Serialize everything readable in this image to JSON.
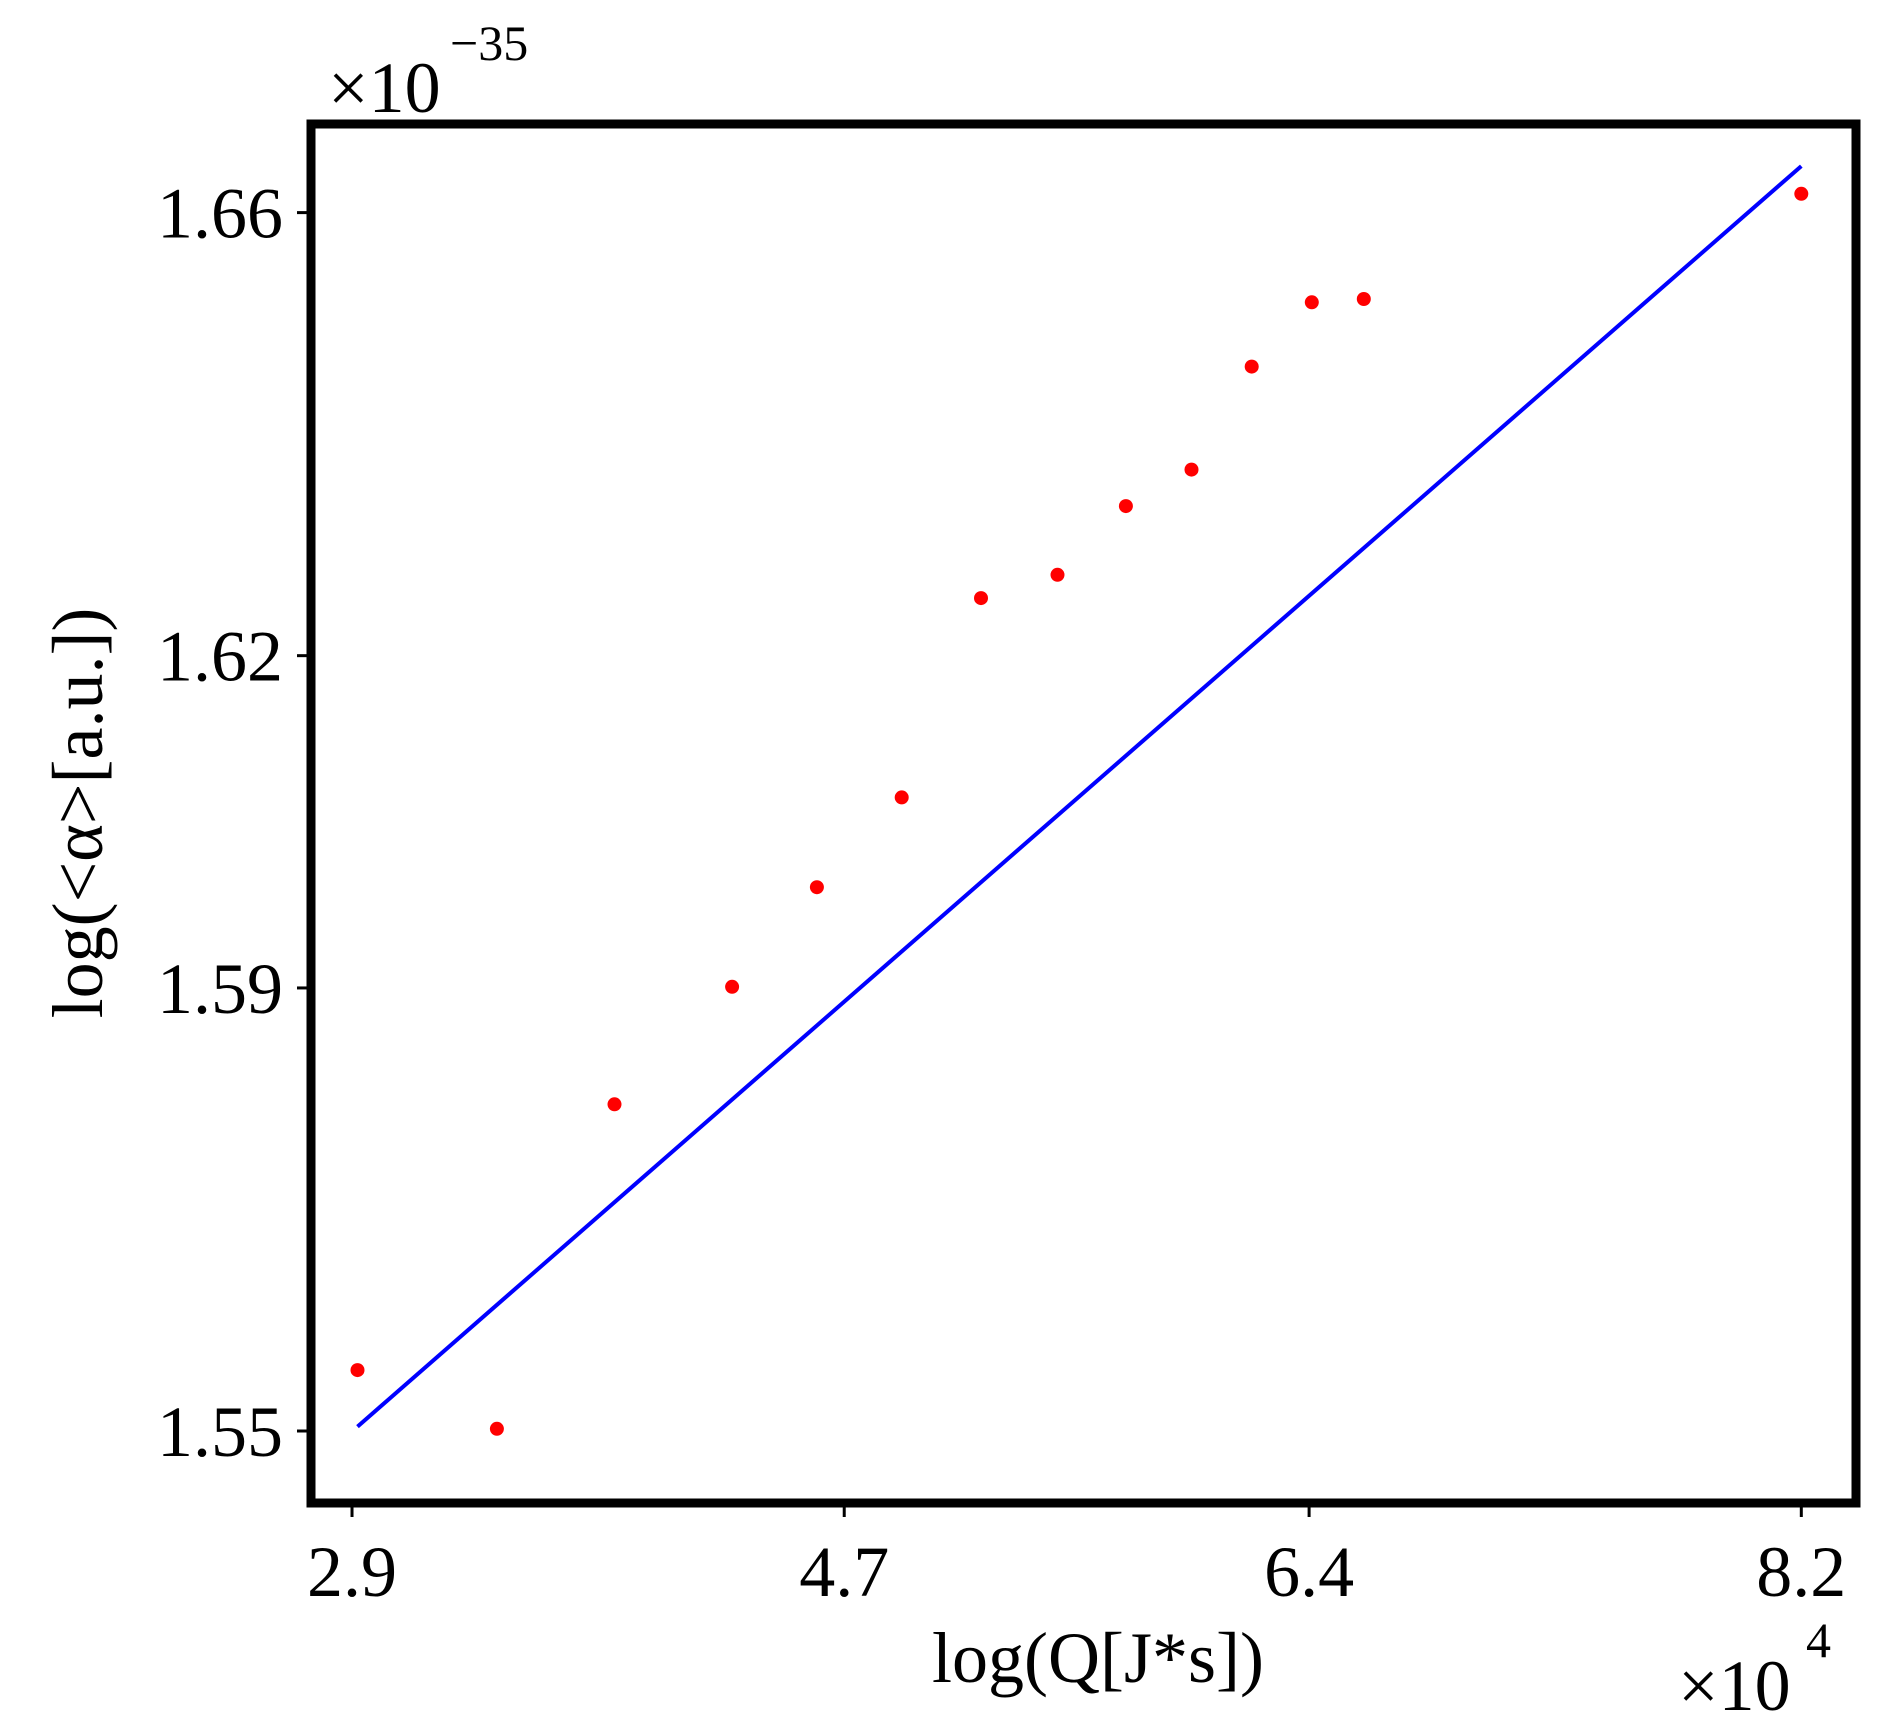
{
  "chart_data": {
    "type": "scatter",
    "title": "",
    "xlabel": "log(Q[J*s])",
    "ylabel": "log(<α>[a.u.])",
    "x_scale_exponent_label": "×10",
    "x_scale_exponent": "4",
    "y_scale_exponent_label": "×10",
    "y_scale_exponent": "−35",
    "xlim": [
      2.75,
      8.4
    ],
    "ylim": [
      1.5435,
      1.668
    ],
    "x_ticks": [
      2.9,
      4.7,
      6.4,
      8.2
    ],
    "x_tick_labels": [
      "2.9",
      "4.7",
      "6.4",
      "8.2"
    ],
    "y_ticks": [
      1.55,
      1.59,
      1.62,
      1.66
    ],
    "y_tick_labels": [
      "1.55",
      "1.59",
      "1.62",
      "1.66"
    ],
    "grid": false,
    "legend": "none",
    "series": [
      {
        "kind": "scatter",
        "color": "#ff0000",
        "x": [
          2.92,
          3.43,
          3.86,
          4.29,
          4.6,
          4.91,
          5.2,
          5.48,
          5.73,
          5.97,
          6.19,
          6.41,
          6.6,
          8.2
        ],
        "y": [
          1.5555,
          1.5502,
          1.5795,
          1.5901,
          1.5991,
          1.6072,
          1.6252,
          1.6273,
          1.6335,
          1.6368,
          1.6461,
          1.6519,
          1.6522,
          1.6617
        ]
      },
      {
        "kind": "line",
        "color": "#0000ff",
        "x": [
          2.92,
          8.2
        ],
        "y": [
          1.5504,
          1.6642
        ]
      }
    ]
  }
}
